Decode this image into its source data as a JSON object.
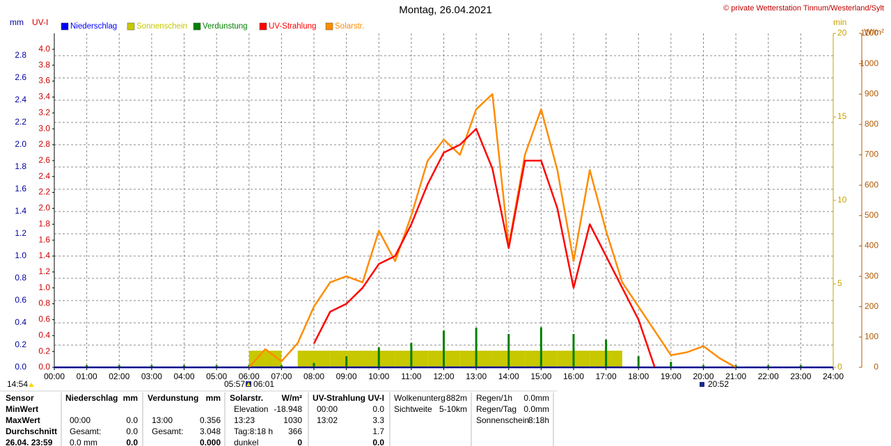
{
  "chart_data": {
    "type": "line",
    "title": "Montag, 26.04.2021",
    "credit": "© private Wetterstation Tinnum/Westerland/Sylt",
    "ylabel": "mm",
    "y2label": "UV-I",
    "y3label": "min",
    "y4label": "W/m²",
    "annotations": [
      "14:54",
      "05:57",
      "06:01",
      "20:52"
    ],
    "grid": true,
    "xlim": [
      0,
      24
    ],
    "xticks": [
      {
        "value": 0,
        "label": "00:00"
      },
      {
        "value": 1,
        "label": "01:00"
      },
      {
        "value": 2,
        "label": "02:00"
      },
      {
        "value": 3,
        "label": "03:00"
      },
      {
        "value": 4,
        "label": "04:00"
      },
      {
        "value": 5,
        "label": "05:00"
      },
      {
        "value": 6,
        "label": "06:00"
      },
      {
        "value": 7,
        "label": "07:00"
      },
      {
        "value": 8,
        "label": "08:00"
      },
      {
        "value": 9,
        "label": "09:00"
      },
      {
        "value": 10,
        "label": "10:00"
      },
      {
        "value": 11,
        "label": "11:00"
      },
      {
        "value": 12,
        "label": "12:00"
      },
      {
        "value": 13,
        "label": "13:00"
      },
      {
        "value": 14,
        "label": "14:00"
      },
      {
        "value": 15,
        "label": "15:00"
      },
      {
        "value": 16,
        "label": "16:00"
      },
      {
        "value": 17,
        "label": "17:00"
      },
      {
        "value": 18,
        "label": "18:00"
      },
      {
        "value": 19,
        "label": "19:00"
      },
      {
        "value": 20,
        "label": "20:00"
      },
      {
        "value": 21,
        "label": "21:00"
      },
      {
        "value": 22,
        "label": "22:00"
      },
      {
        "value": 23,
        "label": "23:00"
      },
      {
        "value": 24,
        "label": "24:00"
      }
    ],
    "ylim": [
      0,
      3
    ],
    "yticks": [
      {
        "value": 0,
        "label": "0.0"
      },
      {
        "value": 0.2,
        "label": "0.2"
      },
      {
        "value": 0.4,
        "label": "0.4"
      },
      {
        "value": 0.6,
        "label": "0.6"
      },
      {
        "value": 0.8,
        "label": "0.8"
      },
      {
        "value": 1,
        "label": "1.0"
      },
      {
        "value": 1.2,
        "label": "1.2"
      },
      {
        "value": 1.4,
        "label": "1.4"
      },
      {
        "value": 1.6,
        "label": "1.6"
      },
      {
        "value": 1.8,
        "label": "1.8"
      },
      {
        "value": 2,
        "label": "2.0"
      },
      {
        "value": 2.2,
        "label": "2.2"
      },
      {
        "value": 2.4,
        "label": "2.4"
      },
      {
        "value": 2.6,
        "label": "2.6"
      },
      {
        "value": 2.8,
        "label": "2.8"
      }
    ],
    "y2lim": [
      0,
      4.2
    ],
    "y2ticks": [
      {
        "value": 0,
        "label": "0.0"
      },
      {
        "value": 0.2,
        "label": "0.2"
      },
      {
        "value": 0.4,
        "label": "0.4"
      },
      {
        "value": 0.6,
        "label": "0.6"
      },
      {
        "value": 0.8,
        "label": "0.8"
      },
      {
        "value": 1,
        "label": "1.0"
      },
      {
        "value": 1.2,
        "label": "1.2"
      },
      {
        "value": 1.4,
        "label": "1.4"
      },
      {
        "value": 1.6,
        "label": "1.6"
      },
      {
        "value": 1.8,
        "label": "1.8"
      },
      {
        "value": 2,
        "label": "2.0"
      },
      {
        "value": 2.2,
        "label": "2.2"
      },
      {
        "value": 2.4,
        "label": "2.4"
      },
      {
        "value": 2.6,
        "label": "2.6"
      },
      {
        "value": 2.8,
        "label": "2.8"
      },
      {
        "value": 3,
        "label": "3.0"
      },
      {
        "value": 3.2,
        "label": "3.2"
      },
      {
        "value": 3.4,
        "label": "3.4"
      },
      {
        "value": 3.6,
        "label": "3.6"
      },
      {
        "value": 3.8,
        "label": "3.8"
      },
      {
        "value": 4,
        "label": "4.0"
      }
    ],
    "y3lim": [
      0,
      20
    ],
    "y3ticks": [
      0,
      5,
      10,
      15,
      20
    ],
    "y4lim": [
      0,
      1100
    ],
    "y4ticks": [
      0,
      100,
      200,
      300,
      400,
      500,
      600,
      700,
      800,
      900,
      1000,
      1100
    ],
    "x": [
      0,
      0.5,
      1,
      1.5,
      2,
      2.5,
      3,
      3.5,
      4,
      4.5,
      5,
      5.5,
      6,
      6.5,
      7,
      7.5,
      8,
      8.5,
      9,
      9.5,
      10,
      10.5,
      11,
      11.5,
      12,
      12.5,
      13,
      13.5,
      14,
      14.5,
      15,
      15.5,
      16,
      16.5,
      17,
      17.5,
      18,
      18.5,
      19,
      19.5,
      20,
      20.5,
      21,
      21.5,
      22,
      22.5,
      23,
      23.5,
      24
    ],
    "series": [
      {
        "name": "Niederschlag",
        "color": "#0000ff",
        "axis": "y",
        "style": "line",
        "values": [
          0,
          0,
          0,
          0,
          0,
          0,
          0,
          0,
          0,
          0,
          0,
          0,
          0,
          0,
          0,
          0,
          0,
          0,
          0,
          0,
          0,
          0,
          0,
          0,
          0,
          0,
          0,
          0,
          0,
          0,
          0,
          0,
          0,
          0,
          0,
          0,
          0,
          0,
          0,
          0,
          0,
          0,
          0,
          0,
          0,
          0,
          0,
          0,
          0
        ]
      },
      {
        "name": "Sonnenschein",
        "color": "#c8c800",
        "axis": "y3",
        "style": "bar",
        "values": [
          0,
          0,
          0,
          0,
          0,
          0,
          0,
          0,
          0,
          0,
          0,
          0,
          1,
          1,
          0,
          1,
          1,
          1,
          1,
          1,
          1,
          1,
          1,
          1,
          1,
          1,
          1,
          1,
          1,
          1,
          1,
          1,
          1,
          1,
          1,
          0,
          0,
          0,
          0,
          0,
          0,
          0,
          0,
          0,
          0,
          0,
          0,
          0,
          0
        ]
      },
      {
        "name": "Verdunstung",
        "color": "#008000",
        "axis": "y",
        "style": "spike",
        "values": [
          0,
          0,
          0.02,
          0,
          0.02,
          0,
          0.02,
          0,
          0.02,
          0,
          0.02,
          0,
          0.02,
          0,
          0.02,
          0,
          0.04,
          0,
          0.1,
          0,
          0.18,
          0,
          0.22,
          0,
          0.33,
          0,
          0.356,
          0,
          0.3,
          0,
          0.36,
          0,
          0.3,
          0,
          0.25,
          0,
          0.1,
          0,
          0.05,
          0,
          0.02,
          0,
          0.02,
          0,
          0.02,
          0,
          0.02,
          0,
          0
        ]
      },
      {
        "name": "UV-Strahlung",
        "color": "#ff0000",
        "axis": "y2",
        "style": "line",
        "values": [
          null,
          null,
          null,
          null,
          null,
          null,
          null,
          null,
          null,
          null,
          null,
          null,
          null,
          null,
          null,
          null,
          0.3,
          0.7,
          0.8,
          1.0,
          1.3,
          1.4,
          1.8,
          2.3,
          2.7,
          2.8,
          3.0,
          2.5,
          1.5,
          2.6,
          2.6,
          2.0,
          1.0,
          1.8,
          1.4,
          1.0,
          0.6,
          0,
          null,
          null,
          null,
          null,
          null,
          null,
          null,
          null,
          null,
          null,
          null
        ]
      },
      {
        "name": "Solarstr.",
        "color": "#ff8c00",
        "axis": "y4",
        "style": "line",
        "values": [
          null,
          null,
          null,
          null,
          null,
          null,
          null,
          null,
          null,
          null,
          null,
          null,
          0,
          60,
          20,
          80,
          200,
          280,
          300,
          280,
          450,
          350,
          500,
          680,
          750,
          700,
          850,
          900,
          400,
          700,
          850,
          650,
          350,
          650,
          450,
          280,
          200,
          120,
          40,
          50,
          70,
          30,
          0,
          null,
          null,
          null,
          null,
          null,
          null
        ]
      }
    ]
  },
  "summary": {
    "labels": [
      "Sensor",
      "MinWert",
      "MaxWert",
      "Durchschnitt",
      "26.04. 23:59"
    ],
    "blocks": [
      {
        "header": [
          "Niederschlag",
          "mm"
        ],
        "rows": [
          [],
          [
            "00:00",
            "0.0"
          ],
          [
            "Gesamt:",
            "0.0"
          ],
          [
            "0.0 mm",
            "0.0"
          ]
        ]
      },
      {
        "header": [
          "Verdunstung",
          "mm"
        ],
        "rows": [
          [],
          [
            "13:00",
            "0.356"
          ],
          [
            "Gesamt:",
            "3.048"
          ],
          [
            null,
            "0.000"
          ]
        ]
      },
      {
        "header": [
          "Solarstr.",
          "W/m²"
        ],
        "rows": [
          [
            "Elevation",
            "-18.948"
          ],
          [
            "13:23",
            "1030"
          ],
          [
            "Tag:8:18 h",
            "366"
          ],
          [
            "dunkel",
            "0"
          ]
        ]
      },
      {
        "header": [
          "UV-Strahlung",
          "UV-I"
        ],
        "rows": [
          [
            "00:00",
            "0.0"
          ],
          [
            "13:02",
            "3.3"
          ],
          [
            null,
            "1.7"
          ],
          [
            null,
            "0.0"
          ]
        ]
      }
    ],
    "info": [
      [
        [
          "Wolkenunterg",
          "882m"
        ],
        [
          "Sichtweite",
          "5-10km"
        ]
      ],
      [
        [
          "Regen/1h",
          "0.0mm"
        ],
        [
          "Regen/Tag",
          "0.0mm"
        ],
        [
          "Sonnenschein",
          "8:18h"
        ]
      ]
    ]
  }
}
